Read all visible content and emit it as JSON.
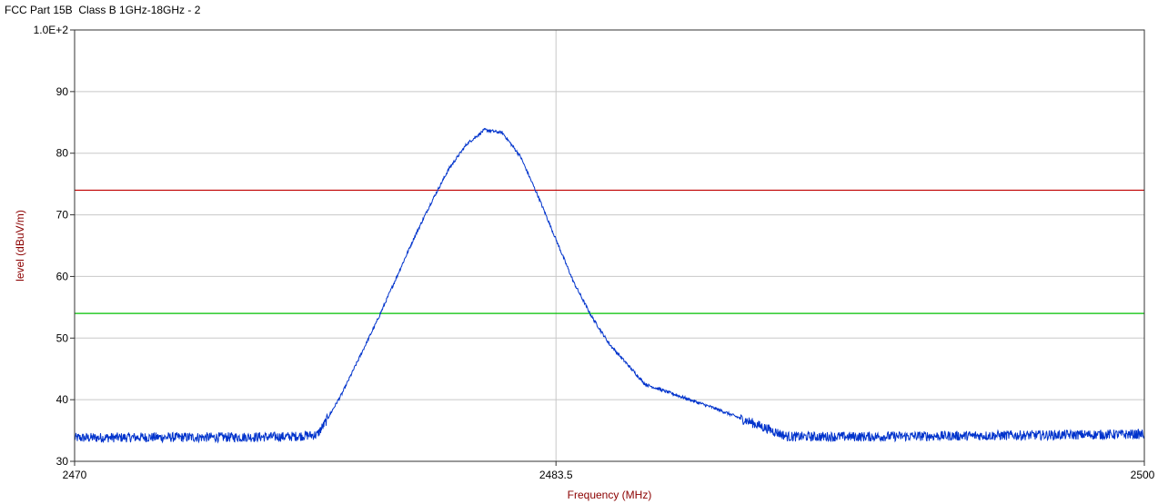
{
  "chart_data": {
    "type": "line",
    "title": "FCC Part 15B  Class B 1GHz-18GHz - 2",
    "xlabel": "Frequency (MHz)",
    "ylabel": "level (dBuV/m)",
    "xlim": [
      2470,
      2500
    ],
    "ylim": [
      30,
      100
    ],
    "x_ticks": [
      {
        "value": 2470,
        "label": "2470"
      },
      {
        "value": 2483.5,
        "label": "2483.5"
      },
      {
        "value": 2500,
        "label": "2500"
      }
    ],
    "y_ticks": [
      {
        "value": 30,
        "label": "30"
      },
      {
        "value": 40,
        "label": "40"
      },
      {
        "value": 50,
        "label": "50"
      },
      {
        "value": 60,
        "label": "60"
      },
      {
        "value": 70,
        "label": "70"
      },
      {
        "value": 80,
        "label": "80"
      },
      {
        "value": 90,
        "label": "90"
      },
      {
        "value": 100,
        "label": "1.0E+2"
      }
    ],
    "grid": true,
    "limit_lines": [
      {
        "value": 74,
        "color": "#c00000"
      },
      {
        "value": 54,
        "color": "#00c000"
      }
    ],
    "series": [
      {
        "color": "#0033cc",
        "x": [
          2470,
          2472,
          2474,
          2476,
          2476.8,
          2477,
          2477.5,
          2478,
          2478.5,
          2479,
          2479.5,
          2480,
          2480.5,
          2481,
          2481.5,
          2482,
          2482.5,
          2483,
          2483.5,
          2484,
          2484.5,
          2485,
          2486,
          2488,
          2490,
          2492,
          2494,
          2496,
          2498,
          2500
        ],
        "y": [
          33.8,
          33.9,
          33.9,
          34.0,
          34.3,
          36.0,
          41.0,
          47.0,
          53.0,
          59.5,
          66.0,
          72.0,
          77.5,
          81.5,
          83.8,
          83.3,
          79.5,
          73.0,
          66.0,
          59.0,
          53.5,
          49.0,
          42.5,
          38.5,
          34.0,
          34.0,
          34.1,
          34.2,
          34.3,
          34.4
        ]
      }
    ]
  }
}
